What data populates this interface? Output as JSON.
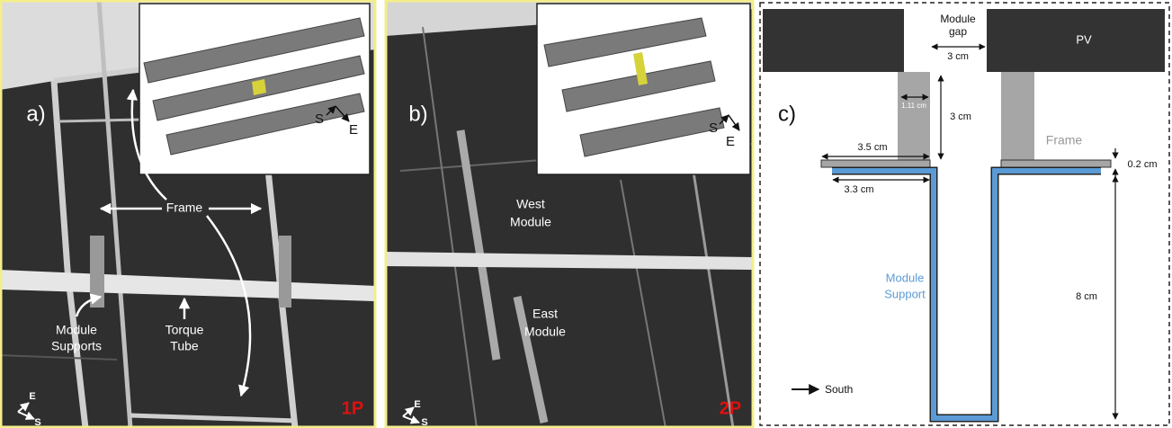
{
  "panel_a": {
    "label": "a)",
    "badge": "1P",
    "frame": "Frame",
    "module_supports": [
      "Module",
      "Supports"
    ],
    "torque_tube": [
      "Torque",
      "Tube"
    ],
    "inset_compass": {
      "s": "S",
      "e": "E"
    },
    "compass": {
      "e": "E",
      "s": "S"
    }
  },
  "panel_b": {
    "label": "b)",
    "badge": "2P",
    "west_module": [
      "West",
      "Module"
    ],
    "east_module": [
      "East",
      "Module"
    ],
    "inset_compass": {
      "s": "S",
      "e": "E"
    },
    "compass": {
      "e": "E",
      "s": "S"
    }
  },
  "panel_c": {
    "label": "c)",
    "pv": "PV",
    "module_gap": [
      "Module",
      "gap"
    ],
    "gap_width": "3 cm",
    "frame_wall": "1.11 cm",
    "frame_height": "3 cm",
    "frame_flange": "3.5 cm",
    "frame_label": "Frame",
    "flange_thickness": "0.2 cm",
    "support_flange": "3.3 cm",
    "support_label": [
      "Module",
      "Support"
    ],
    "support_depth": "8 cm",
    "south": "South"
  }
}
